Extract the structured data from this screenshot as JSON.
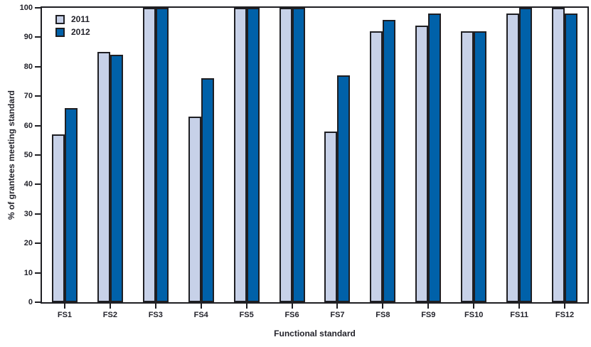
{
  "colors": {
    "outline": "#1f1f23",
    "text": "#23232b",
    "background": "#ffffff",
    "series_2011": "#c7d1e8",
    "series_2012": "#0061a9"
  },
  "chart_data": {
    "type": "bar",
    "title": "",
    "xlabel": "Functional standard",
    "ylabel": "% of grantees meeting standard",
    "ylim": [
      0,
      100
    ],
    "yticks": [
      0,
      10,
      20,
      30,
      40,
      50,
      60,
      70,
      80,
      90,
      100
    ],
    "grid": false,
    "legend_position": "top-left",
    "categories": [
      "FS1",
      "FS2",
      "FS3",
      "FS4",
      "FS5",
      "FS6",
      "FS7",
      "FS8",
      "FS9",
      "FS10",
      "FS11",
      "FS12"
    ],
    "series": [
      {
        "name": "2011",
        "color": "#c7d1e8",
        "values": [
          57,
          85,
          100,
          63,
          100,
          100,
          58,
          92,
          94,
          92,
          98,
          100
        ]
      },
      {
        "name": "2012",
        "color": "#0061a9",
        "values": [
          66,
          84,
          100,
          76,
          100,
          100,
          77,
          96,
          98,
          92,
          100,
          98
        ]
      }
    ]
  }
}
